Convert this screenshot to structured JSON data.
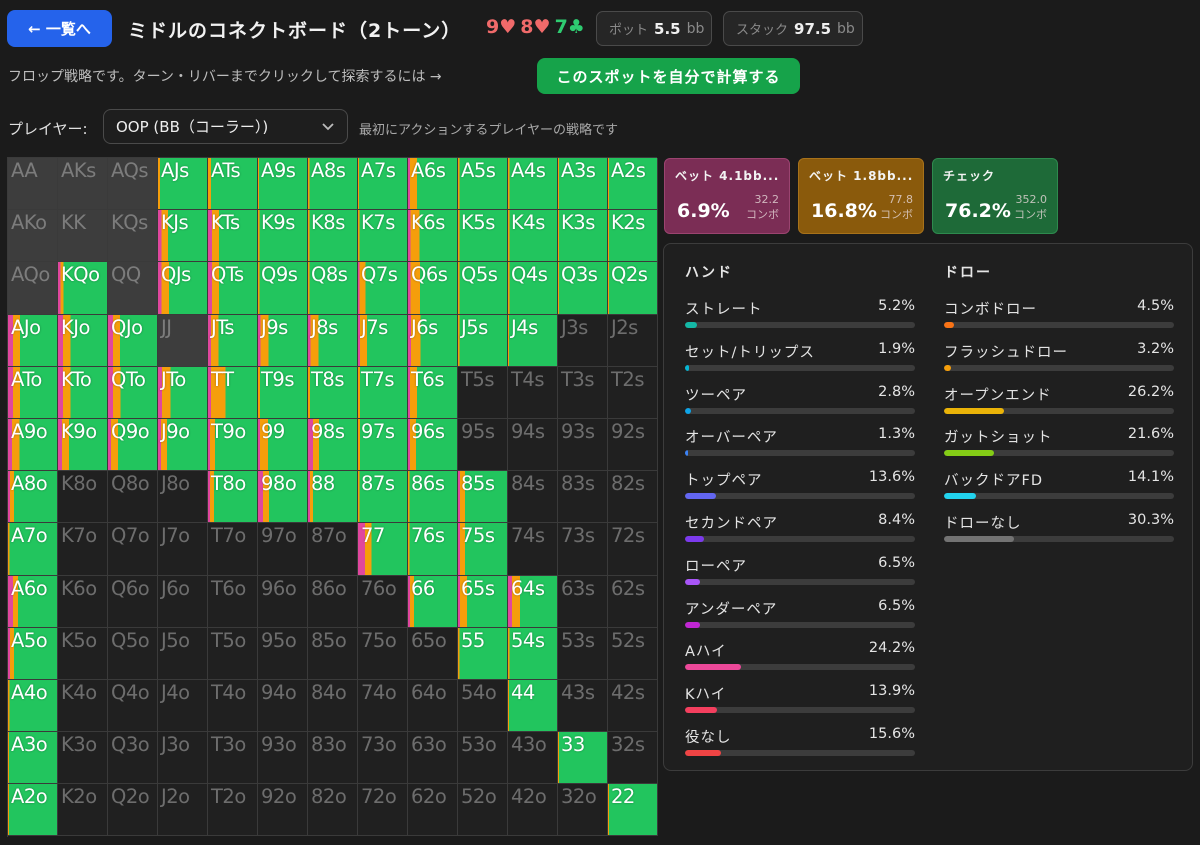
{
  "header": {
    "back_label": "← 一覧へ",
    "title": "ミドルのコネクトボード（2トーン）",
    "board": [
      {
        "rank": "9",
        "suit": "♥",
        "color": "#f06a6a"
      },
      {
        "rank": "8",
        "suit": "♥",
        "color": "#f06a6a"
      },
      {
        "rank": "7",
        "suit": "♣",
        "color": "#2ecc71"
      }
    ],
    "pot_label": "ポット",
    "pot_value": "5.5",
    "pot_unit": "bb",
    "stack_label": "スタック",
    "stack_value": "97.5",
    "stack_unit": "bb"
  },
  "subtext": "フロップ戦略です。ターン・リバーまでクリックして探索するには →",
  "calc_button": "このスポットを自分で計算する",
  "player": {
    "label": "プレイヤー:",
    "selected": "OOP (BB（コーラー）)",
    "hint": "最初にアクションするプレイヤーの戦略です"
  },
  "colors": {
    "bet_large": "#e0479e",
    "bet_small": "#f59e0b",
    "check": "#22c55e",
    "empty": "#202020",
    "board_combo": "#3d3d3d"
  },
  "grid": {
    "rows": [
      [
        "AA",
        "AKs",
        "AQs",
        "AJs",
        "ATs",
        "A9s",
        "A8s",
        "A7s",
        "A6s",
        "A5s",
        "A4s",
        "A3s",
        "A2s"
      ],
      [
        "AKo",
        "KK",
        "KQs",
        "KJs",
        "KTs",
        "K9s",
        "K8s",
        "K7s",
        "K6s",
        "K5s",
        "K4s",
        "K3s",
        "K2s"
      ],
      [
        "AQo",
        "KQo",
        "QQ",
        "QJs",
        "QTs",
        "Q9s",
        "Q8s",
        "Q7s",
        "Q6s",
        "Q5s",
        "Q4s",
        "Q3s",
        "Q2s"
      ],
      [
        "AJo",
        "KJo",
        "QJo",
        "JJ",
        "JTs",
        "J9s",
        "J8s",
        "J7s",
        "J6s",
        "J5s",
        "J4s",
        "J3s",
        "J2s"
      ],
      [
        "ATo",
        "KTo",
        "QTo",
        "JTo",
        "TT",
        "T9s",
        "T8s",
        "T7s",
        "T6s",
        "T5s",
        "T4s",
        "T3s",
        "T2s"
      ],
      [
        "A9o",
        "K9o",
        "Q9o",
        "J9o",
        "T9o",
        "99",
        "98s",
        "97s",
        "96s",
        "95s",
        "94s",
        "93s",
        "92s"
      ],
      [
        "A8o",
        "K8o",
        "Q8o",
        "J8o",
        "T8o",
        "98o",
        "88",
        "87s",
        "86s",
        "85s",
        "84s",
        "83s",
        "82s"
      ],
      [
        "A7o",
        "K7o",
        "Q7o",
        "J7o",
        "T7o",
        "97o",
        "87o",
        "77",
        "76s",
        "75s",
        "74s",
        "73s",
        "72s"
      ],
      [
        "A6o",
        "K6o",
        "Q6o",
        "J6o",
        "T6o",
        "96o",
        "86o",
        "76o",
        "66",
        "65s",
        "64s",
        "63s",
        "62s"
      ],
      [
        "A5o",
        "K5o",
        "Q5o",
        "J5o",
        "T5o",
        "95o",
        "85o",
        "75o",
        "65o",
        "55",
        "54s",
        "53s",
        "52s"
      ],
      [
        "A4o",
        "K4o",
        "Q4o",
        "J4o",
        "T4o",
        "94o",
        "84o",
        "74o",
        "64o",
        "54o",
        "44",
        "43s",
        "42s"
      ],
      [
        "A3o",
        "K3o",
        "Q3o",
        "J3o",
        "T3o",
        "93o",
        "83o",
        "73o",
        "63o",
        "53o",
        "43o",
        "33",
        "32s"
      ],
      [
        "A2o",
        "K2o",
        "Q2o",
        "J2o",
        "T2o",
        "92o",
        "82o",
        "72o",
        "62o",
        "52o",
        "42o",
        "32o",
        "22"
      ]
    ],
    "strategy": {
      "AJs": [
        0,
        4,
        96
      ],
      "ATs": [
        0,
        6,
        94
      ],
      "A9s": [
        0,
        2,
        98
      ],
      "A8s": [
        0,
        3,
        97
      ],
      "A7s": [
        0,
        2,
        98
      ],
      "A6s": [
        4,
        14,
        82
      ],
      "A5s": [
        0,
        3,
        97
      ],
      "A4s": [
        0,
        3,
        97
      ],
      "A3s": [
        0,
        2,
        98
      ],
      "A2s": [
        0,
        2,
        98
      ],
      "KJs": [
        7,
        13,
        80
      ],
      "KTs": [
        8,
        14,
        78
      ],
      "K9s": [
        0,
        3,
        97
      ],
      "K8s": [
        0,
        3,
        97
      ],
      "K7s": [
        0,
        3,
        97
      ],
      "K6s": [
        5,
        18,
        77
      ],
      "K5s": [
        0,
        3,
        97
      ],
      "K4s": [
        0,
        3,
        97
      ],
      "K3s": [
        0,
        2,
        98
      ],
      "K2s": [
        0,
        2,
        98
      ],
      "KQo": [
        5,
        6,
        89
      ],
      "QJs": [
        7,
        15,
        78
      ],
      "QTs": [
        8,
        14,
        78
      ],
      "Q9s": [
        0,
        3,
        97
      ],
      "Q8s": [
        0,
        3,
        97
      ],
      "Q7s": [
        3,
        12,
        85
      ],
      "Q6s": [
        5,
        20,
        75
      ],
      "Q5s": [
        0,
        3,
        97
      ],
      "Q4s": [
        0,
        3,
        97
      ],
      "Q3s": [
        0,
        2,
        98
      ],
      "Q2s": [
        0,
        2,
        98
      ],
      "AJo": [
        10,
        15,
        75
      ],
      "KJo": [
        10,
        16,
        74
      ],
      "QJo": [
        10,
        15,
        75
      ],
      "JTs": [
        6,
        15,
        79
      ],
      "J9s": [
        5,
        16,
        79
      ],
      "J8s": [
        5,
        16,
        79
      ],
      "J7s": [
        4,
        14,
        82
      ],
      "J6s": [
        6,
        20,
        74
      ],
      "J5s": [
        0,
        3,
        97
      ],
      "J4s": [
        0,
        2,
        98
      ],
      "ATo": [
        10,
        15,
        75
      ],
      "KTo": [
        10,
        16,
        74
      ],
      "QTo": [
        10,
        16,
        74
      ],
      "JTo": [
        8,
        18,
        74
      ],
      "TT": [
        6,
        30,
        64
      ],
      "T9s": [
        0,
        4,
        96
      ],
      "T8s": [
        0,
        4,
        96
      ],
      "T7s": [
        0,
        4,
        96
      ],
      "T6s": [
        4,
        14,
        82
      ],
      "A9o": [
        8,
        15,
        77
      ],
      "K9o": [
        8,
        14,
        78
      ],
      "Q9o": [
        6,
        14,
        80
      ],
      "J9o": [
        6,
        12,
        82
      ],
      "T9o": [
        4,
        10,
        86
      ],
      "99": [
        4,
        16,
        80
      ],
      "98s": [
        10,
        12,
        78
      ],
      "97s": [
        0,
        4,
        96
      ],
      "96s": [
        4,
        12,
        84
      ],
      "A8o": [
        4,
        8,
        88
      ],
      "T8o": [
        4,
        8,
        88
      ],
      "98o": [
        10,
        12,
        78
      ],
      "88": [
        4,
        6,
        90
      ],
      "87s": [
        0,
        3,
        97
      ],
      "86s": [
        0,
        3,
        97
      ],
      "85s": [
        4,
        10,
        86
      ],
      "A7o": [
        0,
        3,
        97
      ],
      "77": [
        14,
        14,
        72
      ],
      "76s": [
        0,
        3,
        97
      ],
      "75s": [
        4,
        10,
        86
      ],
      "A6o": [
        10,
        10,
        80
      ],
      "66": [
        4,
        8,
        88
      ],
      "65s": [
        4,
        14,
        82
      ],
      "64s": [
        8,
        16,
        76
      ],
      "A5o": [
        4,
        8,
        88
      ],
      "55": [
        0,
        3,
        97
      ],
      "54s": [
        0,
        3,
        97
      ],
      "A4o": [
        0,
        3,
        97
      ],
      "44": [
        0,
        2,
        98
      ],
      "A3o": [
        0,
        2,
        98
      ],
      "33": [
        0,
        2,
        98
      ],
      "A2o": [
        0,
        2,
        98
      ],
      "22": [
        0,
        2,
        98
      ]
    },
    "board_combos": [
      "AA",
      "AKo",
      "AKs",
      "AQo",
      "AQs",
      "KK",
      "KQs",
      "QQ",
      "JJ"
    ]
  },
  "actions": [
    {
      "name": "ベット 4.1bb...",
      "pct": "6.9%",
      "combos": "32.2",
      "combos_unit": "コンボ"
    },
    {
      "name": "ベット 1.8bb...",
      "pct": "16.8%",
      "combos": "77.8",
      "combos_unit": "コンボ"
    },
    {
      "name": "チェック",
      "pct": "76.2%",
      "combos": "352.0",
      "combos_unit": "コンボ"
    }
  ],
  "stats": {
    "hand_title": "ハンド",
    "draw_title": "ドロー",
    "hand": [
      {
        "label": "ストレート",
        "value": "5.2%",
        "frac": 0.052,
        "color": "#14b8a6"
      },
      {
        "label": "セット/トリップス",
        "value": "1.9%",
        "frac": 0.019,
        "color": "#06b6d4"
      },
      {
        "label": "ツーペア",
        "value": "2.8%",
        "frac": 0.028,
        "color": "#0ea5e9"
      },
      {
        "label": "オーバーペア",
        "value": "1.3%",
        "frac": 0.013,
        "color": "#3b82f6"
      },
      {
        "label": "トップペア",
        "value": "13.6%",
        "frac": 0.136,
        "color": "#6366f1"
      },
      {
        "label": "セカンドペア",
        "value": "8.4%",
        "frac": 0.084,
        "color": "#7c3aed"
      },
      {
        "label": "ローペア",
        "value": "6.5%",
        "frac": 0.065,
        "color": "#a855f7"
      },
      {
        "label": "アンダーペア",
        "value": "6.5%",
        "frac": 0.065,
        "color": "#c026d3"
      },
      {
        "label": "Aハイ",
        "value": "24.2%",
        "frac": 0.242,
        "color": "#ec4899"
      },
      {
        "label": "Kハイ",
        "value": "13.9%",
        "frac": 0.139,
        "color": "#f43f5e"
      },
      {
        "label": "役なし",
        "value": "15.6%",
        "frac": 0.156,
        "color": "#ef4444"
      }
    ],
    "draw": [
      {
        "label": "コンボドロー",
        "value": "4.5%",
        "frac": 0.045,
        "color": "#f97316"
      },
      {
        "label": "フラッシュドロー",
        "value": "3.2%",
        "frac": 0.032,
        "color": "#f59e0b"
      },
      {
        "label": "オープンエンド",
        "value": "26.2%",
        "frac": 0.262,
        "color": "#eab308"
      },
      {
        "label": "ガットショット",
        "value": "21.6%",
        "frac": 0.216,
        "color": "#84cc16"
      },
      {
        "label": "バックドアFD",
        "value": "14.1%",
        "frac": 0.141,
        "color": "#22d3ee"
      },
      {
        "label": "ドローなし",
        "value": "30.3%",
        "frac": 0.303,
        "color": "#737373"
      }
    ]
  }
}
